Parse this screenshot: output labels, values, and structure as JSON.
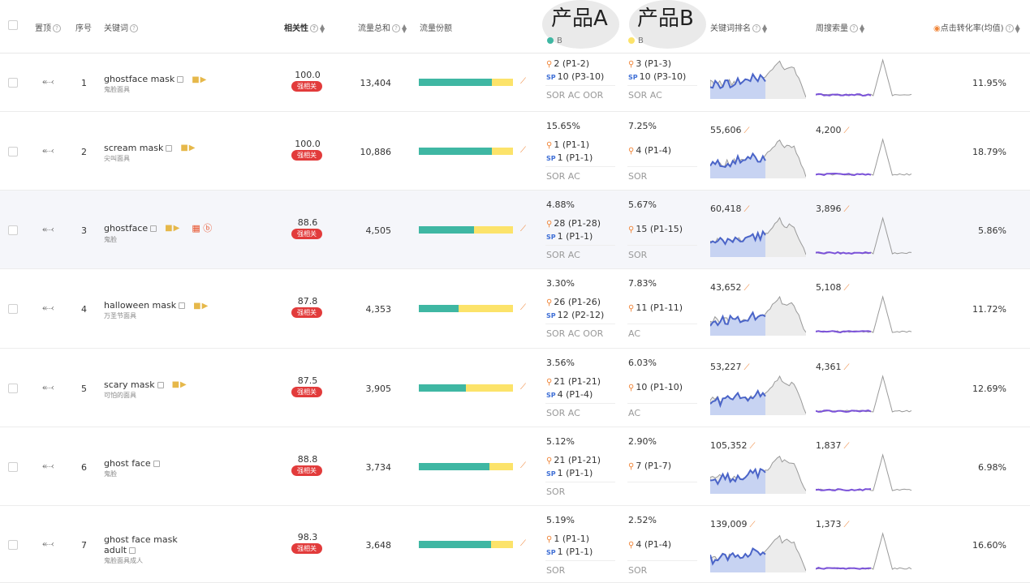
{
  "header": {
    "pin": "置顶",
    "index": "序号",
    "keyword": "关键词",
    "relevance": "相关性",
    "traffic_total": "流量总和",
    "traffic_share": "流量份额",
    "product_a": "产品A",
    "product_b": "产品B",
    "legend_a": "B",
    "legend_b": "B",
    "keyword_rank": "关键词排名",
    "weekly_search": "周搜索量",
    "ctr": "点击转化率(均值)"
  },
  "colors": {
    "teal": "#3fb7a3",
    "yellow": "#fce36a",
    "badge": "#e23b3b",
    "accent": "#f0863a",
    "sp": "#3f6fd6"
  },
  "rows": [
    {
      "idx": "1",
      "kw": "ghostface mask",
      "kw_cn": "鬼脸面具",
      "rel": "100.0",
      "rel_badge": "强相关",
      "traffic": "13,404",
      "share_pct": 0.78,
      "a_share": "",
      "a_rank": "2 (P1-2)",
      "a_sp": "10 (P3-10)",
      "a_src": "SOR AC OOR",
      "b_share": "",
      "b_rank": "3 (P1-3)",
      "b_sp": "10 (P3-10)",
      "b_src": "SOR AC",
      "kr": "",
      "ws": "",
      "ctr": "11.95%",
      "hl": false,
      "extra": false
    },
    {
      "idx": "2",
      "kw": "scream mask",
      "kw_cn": "尖叫面具",
      "rel": "100.0",
      "rel_badge": "强相关",
      "traffic": "10,886",
      "share_pct": 0.78,
      "a_share": "15.65%",
      "a_rank": "1 (P1-1)",
      "a_sp": "1 (P1-1)",
      "a_src": "SOR AC",
      "b_share": "7.25%",
      "b_rank": "4 (P1-4)",
      "b_sp": "",
      "b_src": "SOR",
      "kr": "55,606",
      "ws": "4,200",
      "ctr": "18.79%",
      "hl": false,
      "extra": false
    },
    {
      "idx": "3",
      "kw": "ghostface",
      "kw_cn": "鬼脸",
      "rel": "88.6",
      "rel_badge": "强相关",
      "traffic": "4,505",
      "share_pct": 0.59,
      "a_share": "4.88%",
      "a_rank": "28 (P1-28)",
      "a_sp": "1 (P1-1)",
      "a_src": "SOR AC",
      "b_share": "5.67%",
      "b_rank": "15 (P1-15)",
      "b_sp": "",
      "b_src": "SOR",
      "kr": "60,418",
      "ws": "3,896",
      "ctr": "5.86%",
      "hl": true,
      "extra": true
    },
    {
      "idx": "4",
      "kw": "halloween mask",
      "kw_cn": "万圣节面具",
      "rel": "87.8",
      "rel_badge": "强相关",
      "traffic": "4,353",
      "share_pct": 0.42,
      "a_share": "3.30%",
      "a_rank": "26 (P1-26)",
      "a_sp": "12 (P2-12)",
      "a_src": "SOR AC OOR",
      "b_share": "7.83%",
      "b_rank": "11 (P1-11)",
      "b_sp": "",
      "b_src": "AC",
      "kr": "43,652",
      "ws": "5,108",
      "ctr": "11.72%",
      "hl": false,
      "extra": false
    },
    {
      "idx": "5",
      "kw": "scary mask",
      "kw_cn": "可怕的面具",
      "rel": "87.5",
      "rel_badge": "强相关",
      "traffic": "3,905",
      "share_pct": 0.5,
      "a_share": "3.56%",
      "a_rank": "21 (P1-21)",
      "a_sp": "4 (P1-4)",
      "a_src": "SOR AC",
      "b_share": "6.03%",
      "b_rank": "10 (P1-10)",
      "b_sp": "",
      "b_src": "AC",
      "kr": "53,227",
      "ws": "4,361",
      "ctr": "12.69%",
      "hl": false,
      "extra": false
    },
    {
      "idx": "6",
      "kw": "ghost face",
      "kw_cn": "鬼脸",
      "rel": "88.8",
      "rel_badge": "强相关",
      "traffic": "3,734",
      "share_pct": 0.75,
      "a_share": "5.12%",
      "a_rank": "21 (P1-21)",
      "a_sp": "1 (P1-1)",
      "a_src": "SOR",
      "b_share": "2.90%",
      "b_rank": "7 (P1-7)",
      "b_sp": "",
      "b_src": "",
      "kr": "105,352",
      "ws": "1,837",
      "ctr": "6.98%",
      "hl": false,
      "extra": false
    },
    {
      "idx": "7",
      "kw": "ghost face mask",
      "kw2": "adult",
      "kw_cn": "鬼脸面具成人",
      "rel": "98.3",
      "rel_badge": "强相关",
      "traffic": "3,648",
      "share_pct": 0.77,
      "a_share": "5.19%",
      "a_rank": "1 (P1-1)",
      "a_sp": "1 (P1-1)",
      "a_src": "SOR",
      "b_share": "2.52%",
      "b_rank": "4 (P1-4)",
      "b_sp": "",
      "b_src": "SOR",
      "kr": "139,009",
      "ws": "1,373",
      "ctr": "16.60%",
      "hl": false,
      "extra": false
    }
  ]
}
